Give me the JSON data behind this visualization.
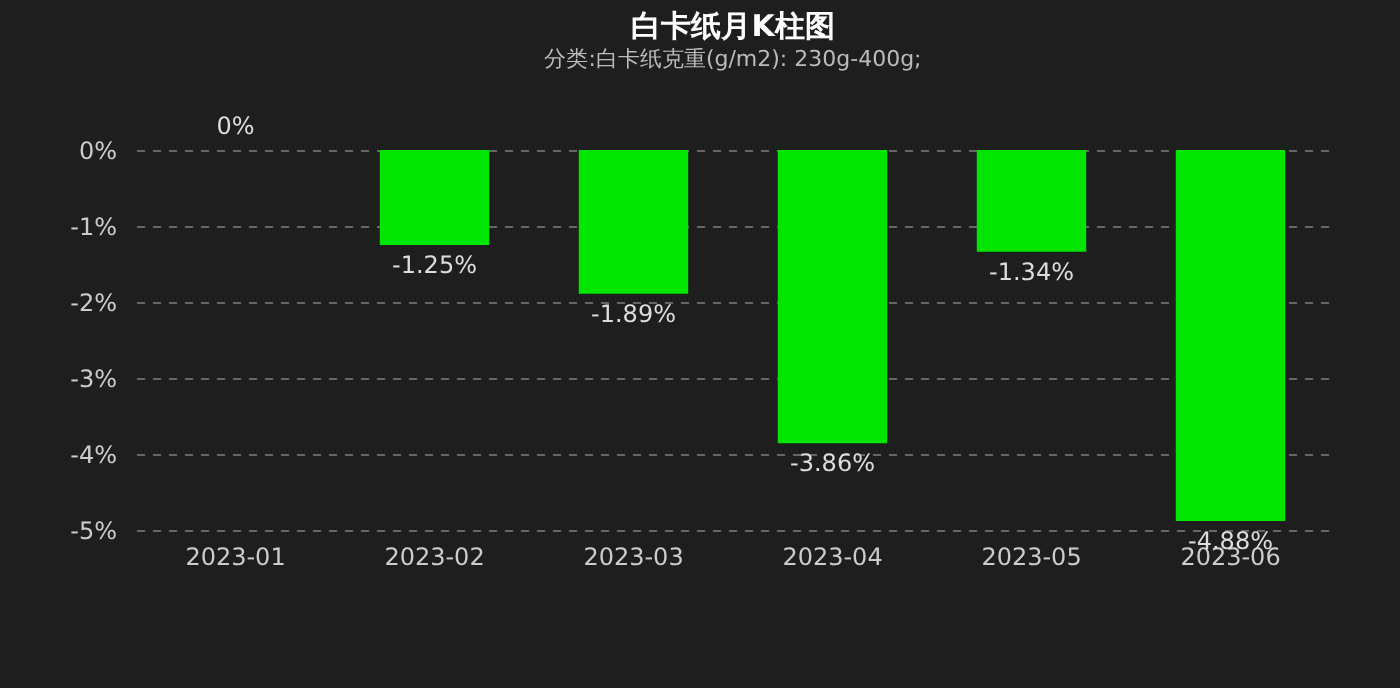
{
  "chart_data": {
    "type": "bar",
    "title": "白卡纸月K柱图",
    "subtitle": "分类:白卡纸克重(g/m2): 230g-400g;",
    "categories": [
      "2023-01",
      "2023-02",
      "2023-03",
      "2023-04",
      "2023-05",
      "2023-06"
    ],
    "values": [
      0,
      -1.25,
      -1.89,
      -3.86,
      -1.34,
      -4.88
    ],
    "color": "#00e600",
    "value_labels": [
      "0%",
      "-1.25%",
      "-1.89%",
      "-3.86%",
      "-1.34%",
      "-4.88%"
    ],
    "ylim": [
      -5,
      0
    ],
    "yticks": [
      {
        "value": 0,
        "label": "0%"
      },
      {
        "value": -1,
        "label": "-1%"
      },
      {
        "value": -2,
        "label": "-2%"
      },
      {
        "value": -3,
        "label": "-3%"
      },
      {
        "value": -4,
        "label": "-4%"
      },
      {
        "value": -5,
        "label": "-5%"
      }
    ],
    "grid": "y"
  }
}
